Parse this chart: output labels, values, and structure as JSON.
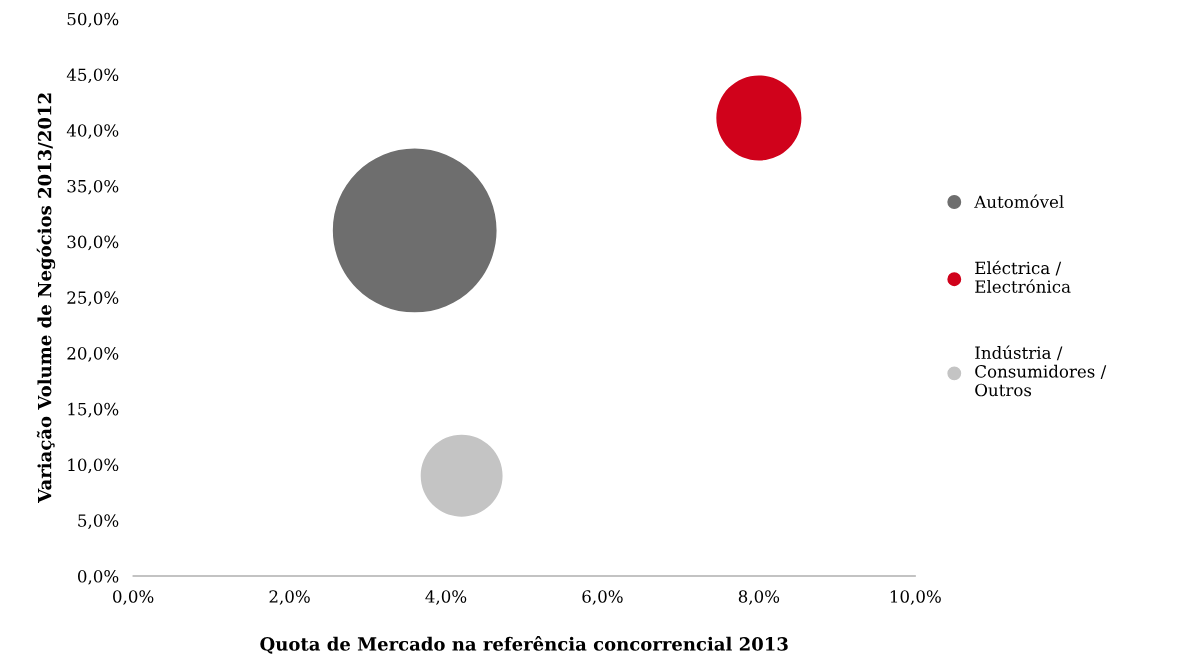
{
  "chart_data": {
    "type": "bubble",
    "xlabel": "Quota de Mercado na referência concorrencial 2013",
    "ylabel": "Variação Volume de Negócios 2013/2012",
    "xlim": [
      0,
      10
    ],
    "ylim": [
      0,
      50
    ],
    "xticks": [
      {
        "value": 0,
        "label": "0,0%"
      },
      {
        "value": 2,
        "label": "2,0%"
      },
      {
        "value": 4,
        "label": "4,0%"
      },
      {
        "value": 6,
        "label": "6,0%"
      },
      {
        "value": 8,
        "label": "8,0%"
      },
      {
        "value": 10,
        "label": "10,0%"
      }
    ],
    "yticks": [
      {
        "value": 0,
        "label": "0,0%"
      },
      {
        "value": 5,
        "label": "5,0%"
      },
      {
        "value": 10,
        "label": "10,0%"
      },
      {
        "value": 15,
        "label": "15,0%"
      },
      {
        "value": 20,
        "label": "20,0%"
      },
      {
        "value": 25,
        "label": "25,0%"
      },
      {
        "value": 30,
        "label": "30,0%"
      },
      {
        "value": 35,
        "label": "35,0%"
      },
      {
        "value": 40,
        "label": "40,0%"
      },
      {
        "value": 45,
        "label": "45,0%"
      },
      {
        "value": 50,
        "label": "50,0%"
      }
    ],
    "series": [
      {
        "name": "Automóvel",
        "color": "#6e6e6e",
        "x": [
          3.6
        ],
        "values": [
          31.0
        ],
        "sizes": [
          1
        ]
      },
      {
        "name": "Eléctrica /\nElectrónica",
        "color": "#d0021b",
        "x": [
          8.0
        ],
        "values": [
          41.1
        ],
        "sizes": [
          0.27
        ]
      },
      {
        "name": "Indústria /\nConsumidores /\nOutros",
        "color": "#c4c4c4",
        "x": [
          4.2
        ],
        "values": [
          9.0
        ],
        "sizes": [
          0.25
        ]
      }
    ],
    "legend": "right",
    "grid": false
  }
}
